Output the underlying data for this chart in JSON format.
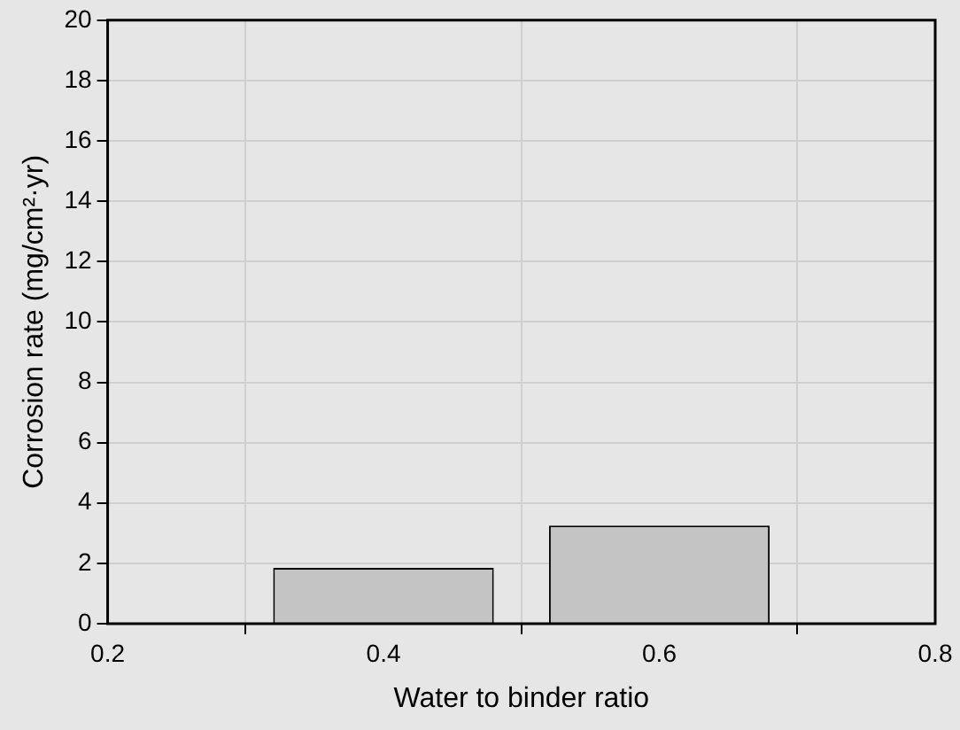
{
  "chart_data": {
    "type": "bar",
    "xlabel": "Water to binder ratio",
    "ylabel": "Corrosion rate (mg/cm²·yr)",
    "x": [
      0.4,
      0.6
    ],
    "values": [
      1.85,
      3.25
    ],
    "color": "#c4c4c4",
    "xlim": [
      0.2,
      0.8
    ],
    "xticks": [
      0.2,
      0.4,
      0.6,
      0.8
    ],
    "ylim": [
      0,
      20
    ],
    "yticks": [
      0,
      2,
      4,
      6,
      8,
      10,
      12,
      14,
      16,
      18,
      20
    ],
    "grid": true
  }
}
